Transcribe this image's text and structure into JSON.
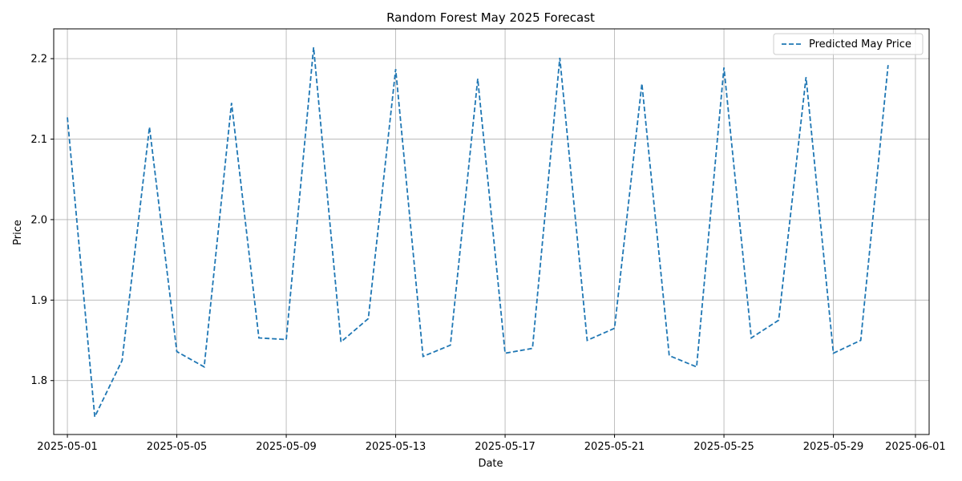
{
  "chart_data": {
    "type": "line",
    "title": "Random Forest May 2025 Forecast",
    "xlabel": "Date",
    "ylabel": "Price",
    "x_tick_labels": [
      "2025-05-01",
      "2025-05-05",
      "2025-05-09",
      "2025-05-13",
      "2025-05-17",
      "2025-05-21",
      "2025-05-25",
      "2025-05-29",
      "2025-06-01"
    ],
    "x_tick_days": [
      1,
      5,
      9,
      13,
      17,
      21,
      25,
      29,
      32
    ],
    "y_ticks": [
      1.8,
      1.9,
      2.0,
      2.1,
      2.2
    ],
    "y_tick_labels": [
      "1.8",
      "1.9",
      "2.0",
      "2.1",
      "2.2"
    ],
    "xlim": [
      "2025-04-29.5",
      "2025-06-01.5"
    ],
    "ylim": [
      1.733,
      2.237
    ],
    "grid": true,
    "legend_position": "top-right",
    "series": [
      {
        "name": "Predicted May Price",
        "color": "#1f77b4",
        "line_style": "dashed",
        "x": [
          "2025-05-01",
          "2025-05-02",
          "2025-05-03",
          "2025-05-04",
          "2025-05-05",
          "2025-05-06",
          "2025-05-07",
          "2025-05-08",
          "2025-05-09",
          "2025-05-10",
          "2025-05-11",
          "2025-05-12",
          "2025-05-13",
          "2025-05-14",
          "2025-05-15",
          "2025-05-16",
          "2025-05-17",
          "2025-05-18",
          "2025-05-19",
          "2025-05-20",
          "2025-05-21",
          "2025-05-22",
          "2025-05-23",
          "2025-05-24",
          "2025-05-25",
          "2025-05-26",
          "2025-05-27",
          "2025-05-28",
          "2025-05-29",
          "2025-05-30",
          "2025-05-31"
        ],
        "day": [
          1,
          2,
          3,
          4,
          5,
          6,
          7,
          8,
          9,
          10,
          11,
          12,
          13,
          14,
          15,
          16,
          17,
          18,
          19,
          20,
          21,
          22,
          23,
          24,
          25,
          26,
          27,
          28,
          29,
          30,
          31
        ],
        "values": [
          2.127,
          1.755,
          1.825,
          2.115,
          1.836,
          1.817,
          2.145,
          1.853,
          1.851,
          2.214,
          1.848,
          1.877,
          2.187,
          1.83,
          1.844,
          2.175,
          1.834,
          1.84,
          2.201,
          1.85,
          1.865,
          2.169,
          1.831,
          1.817,
          2.189,
          1.853,
          1.875,
          2.177,
          1.834,
          1.85,
          2.192
        ]
      }
    ]
  }
}
